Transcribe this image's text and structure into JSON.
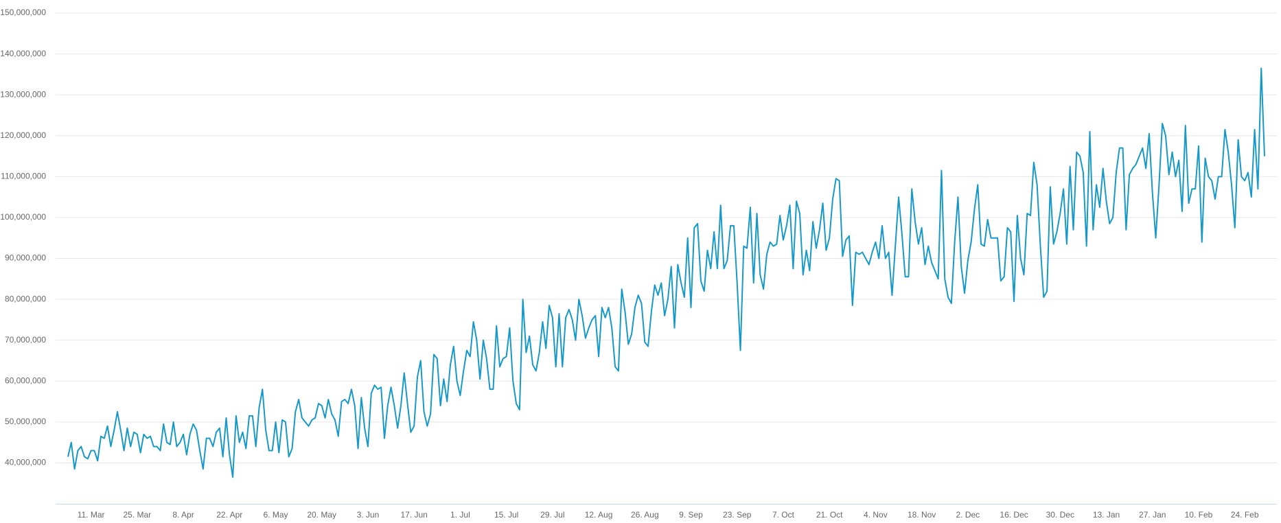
{
  "chart_data": {
    "type": "line",
    "color": "#1699c9",
    "ylim": [
      30000000,
      150000000
    ],
    "yticks": [
      {
        "value": 40000000,
        "label": "40,000,000"
      },
      {
        "value": 50000000,
        "label": "50,000,000"
      },
      {
        "value": 60000000,
        "label": "60,000,000"
      },
      {
        "value": 70000000,
        "label": "70,000,000"
      },
      {
        "value": 80000000,
        "label": "80,000,000"
      },
      {
        "value": 90000000,
        "label": "90,000,000"
      },
      {
        "value": 100000000,
        "label": "100,000,000"
      },
      {
        "value": 110000000,
        "label": "110,000,000"
      },
      {
        "value": 120000000,
        "label": "120,000,000"
      },
      {
        "value": 130000000,
        "label": "130,000,000"
      },
      {
        "value": 140000000,
        "label": "140,000,000"
      },
      {
        "value": 150000000,
        "label": "150,000,000"
      }
    ],
    "grid": true,
    "categories": [
      null,
      null,
      null,
      null,
      null,
      null,
      null,
      "11. Mar",
      null,
      null,
      null,
      null,
      null,
      null,
      null,
      null,
      null,
      null,
      null,
      null,
      null,
      "25. Mar",
      null,
      null,
      null,
      null,
      null,
      null,
      null,
      null,
      null,
      null,
      null,
      null,
      null,
      "8. Apr",
      null,
      null,
      null,
      null,
      null,
      null,
      null,
      null,
      null,
      null,
      null,
      null,
      null,
      "22. Apr",
      null,
      null,
      null,
      null,
      null,
      null,
      null,
      null,
      null,
      null,
      null,
      null,
      null,
      "6. May",
      null,
      null,
      null,
      null,
      null,
      null,
      null,
      null,
      null,
      null,
      null,
      null,
      null,
      "20. May",
      null,
      null,
      null,
      null,
      null,
      null,
      null,
      null,
      null,
      null,
      null,
      null,
      null,
      "3. Jun",
      null,
      null,
      null,
      null,
      null,
      null,
      null,
      null,
      null,
      null,
      null,
      null,
      null,
      "17. Jun",
      null,
      null,
      null,
      null,
      null,
      null,
      null,
      null,
      null,
      null,
      null,
      null,
      null,
      "1. Jul",
      null,
      null,
      null,
      null,
      null,
      null,
      null,
      null,
      null,
      null,
      null,
      null,
      null,
      "15. Jul",
      null,
      null,
      null,
      null,
      null,
      null,
      null,
      null,
      null,
      null,
      null,
      null,
      null,
      "29. Jul",
      null,
      null,
      null,
      null,
      null,
      null,
      null,
      null,
      null,
      null,
      null,
      null,
      null,
      "12. Aug",
      null,
      null,
      null,
      null,
      null,
      null,
      null,
      null,
      null,
      null,
      null,
      null,
      null,
      "26. Aug",
      null,
      null,
      null,
      null,
      null,
      null,
      null,
      null,
      null,
      null,
      null,
      null,
      null,
      "9. Sep",
      null,
      null,
      null,
      null,
      null,
      null,
      null,
      null,
      null,
      null,
      null,
      null,
      null,
      "23. Sep",
      null,
      null,
      null,
      null,
      null,
      null,
      null,
      null,
      null,
      null,
      null,
      null,
      null,
      "7. Oct",
      null,
      null,
      null,
      null,
      null,
      null,
      null,
      null,
      null,
      null,
      null,
      null,
      null,
      "21. Oct",
      null,
      null,
      null,
      null,
      null,
      null,
      null,
      null,
      null,
      null,
      null,
      null,
      null,
      "4. Nov",
      null,
      null,
      null,
      null,
      null,
      null,
      null,
      null,
      null,
      null,
      null,
      null,
      null,
      "18. Nov",
      null,
      null,
      null,
      null,
      null,
      null,
      null,
      null,
      null,
      null,
      null,
      null,
      null,
      "2. Dec",
      null,
      null,
      null,
      null,
      null,
      null,
      null,
      null,
      null,
      null,
      null,
      null,
      null,
      "16. Dec",
      null,
      null,
      null,
      null,
      null,
      null,
      null,
      null,
      null,
      null,
      null,
      null,
      null,
      "30. Dec",
      null,
      null,
      null,
      null,
      null,
      null,
      null,
      null,
      null,
      null,
      null,
      null,
      null,
      "13. Jan",
      null,
      null,
      null,
      null,
      null,
      null,
      null,
      null,
      null,
      null,
      null,
      null,
      null,
      "27. Jan",
      null,
      null,
      null,
      null,
      null,
      null,
      null,
      null,
      null,
      null,
      null,
      null,
      null,
      "10. Feb",
      null,
      null,
      null,
      null,
      null,
      null,
      null,
      null,
      null,
      null,
      null,
      null,
      null,
      "24. Feb",
      null,
      null,
      null,
      null,
      null,
      null
    ],
    "values": [
      41500000,
      45000000,
      38500000,
      43000000,
      44000000,
      41500000,
      41000000,
      43000000,
      43000000,
      40500000,
      46500000,
      46000000,
      49000000,
      44000000,
      48000000,
      52500000,
      48000000,
      43000000,
      48500000,
      44000000,
      47500000,
      47000000,
      42500000,
      47000000,
      46000000,
      46500000,
      44000000,
      44000000,
      43000000,
      49500000,
      45000000,
      44500000,
      50000000,
      44000000,
      45000000,
      47000000,
      42000000,
      47000000,
      49500000,
      48000000,
      43000000,
      38500000,
      46000000,
      46000000,
      44000000,
      47500000,
      48500000,
      41500000,
      51000000,
      42000000,
      36500000,
      51500000,
      45000000,
      47500000,
      43500000,
      51500000,
      51500000,
      44000000,
      53500000,
      58000000,
      48000000,
      43000000,
      43000000,
      50000000,
      42500000,
      50500000,
      50000000,
      41500000,
      43500000,
      52500000,
      55500000,
      51000000,
      50000000,
      49000000,
      50500000,
      51000000,
      54500000,
      54000000,
      51000000,
      55500000,
      52000000,
      50500000,
      46500000,
      55000000,
      55500000,
      54500000,
      58000000,
      54000000,
      43500000,
      56000000,
      48500000,
      44000000,
      57000000,
      59000000,
      58000000,
      58500000,
      46000000,
      54000000,
      58500000,
      54000000,
      48500000,
      54000000,
      62000000,
      54500000,
      47500000,
      49000000,
      61000000,
      65000000,
      52500000,
      49000000,
      52000000,
      66500000,
      65500000,
      54000000,
      60500000,
      55000000,
      64000000,
      68500000,
      60000000,
      56500000,
      62500000,
      67500000,
      66000000,
      74500000,
      70000000,
      60500000,
      70000000,
      65500000,
      58000000,
      58000000,
      73500000,
      63500000,
      65500000,
      66000000,
      73000000,
      60000000,
      54500000,
      53000000,
      80000000,
      67000000,
      71000000,
      64000000,
      62500000,
      67000000,
      74500000,
      68000000,
      78500000,
      75500000,
      63500000,
      76500000,
      63500000,
      75500000,
      77500000,
      75000000,
      70000000,
      80000000,
      76000000,
      70500000,
      73000000,
      75000000,
      76000000,
      66000000,
      78000000,
      75500000,
      78000000,
      73000000,
      63500000,
      62500000,
      82500000,
      77000000,
      69000000,
      71500000,
      78000000,
      81000000,
      79000000,
      69500000,
      68500000,
      77000000,
      83500000,
      81000000,
      84000000,
      76000000,
      80000000,
      88000000,
      73000000,
      88500000,
      84000000,
      80500000,
      95000000,
      78000000,
      97500000,
      98500000,
      84500000,
      82000000,
      92000000,
      87500000,
      96500000,
      87500000,
      103000000,
      87500000,
      89500000,
      98000000,
      98000000,
      84000000,
      67500000,
      93000000,
      92500000,
      102500000,
      84000000,
      101000000,
      86000000,
      82500000,
      91000000,
      94000000,
      93000000,
      93500000,
      100500000,
      94500000,
      98000000,
      103000000,
      87500000,
      104000000,
      101000000,
      86000000,
      92000000,
      87000000,
      99000000,
      92500000,
      97000000,
      103500000,
      92000000,
      95000000,
      104500000,
      109500000,
      109000000,
      90500000,
      94500000,
      95500000,
      78500000,
      91500000,
      91000000,
      91500000,
      90000000,
      88500000,
      91500000,
      94000000,
      90000000,
      98000000,
      90000000,
      91500000,
      81000000,
      93000000,
      105000000,
      96000000,
      85500000,
      85500000,
      107000000,
      99000000,
      93500000,
      97500000,
      88500000,
      93000000,
      89000000,
      87000000,
      85000000,
      111500000,
      85000000,
      80500000,
      79000000,
      94000000,
      105000000,
      88000000,
      81500000,
      89500000,
      94000000,
      102000000,
      108000000,
      93500000,
      93000000,
      99500000,
      95000000,
      95000000,
      95000000,
      84500000,
      85500000,
      97500000,
      96500000,
      79500000,
      100500000,
      90000000,
      86000000,
      101000000,
      100500000,
      113500000,
      108000000,
      93000000,
      80500000,
      82000000,
      107500000,
      93500000,
      96500000,
      101000000,
      107000000,
      93500000,
      112500000,
      97000000,
      116000000,
      115000000,
      111000000,
      93000000,
      121000000,
      97000000,
      108000000,
      102500000,
      112000000,
      104000000,
      98500000,
      100000000,
      111000000,
      117000000,
      117000000,
      97000000,
      110500000,
      112000000,
      113000000,
      115000000,
      117000000,
      112000000,
      120500000,
      106000000,
      95000000,
      108000000,
      123000000,
      120000000,
      110500000,
      116000000,
      110000000,
      114000000,
      101500000,
      122500000,
      103500000,
      107000000,
      107000000,
      117500000,
      94000000,
      114500000,
      110000000,
      109000000,
      104500000,
      110000000,
      110000000,
      121500000,
      116000000,
      108000000,
      97500000,
      119000000,
      110000000,
      109000000,
      111000000,
      105000000,
      121500000,
      107000000,
      136500000,
      115000000
    ]
  }
}
